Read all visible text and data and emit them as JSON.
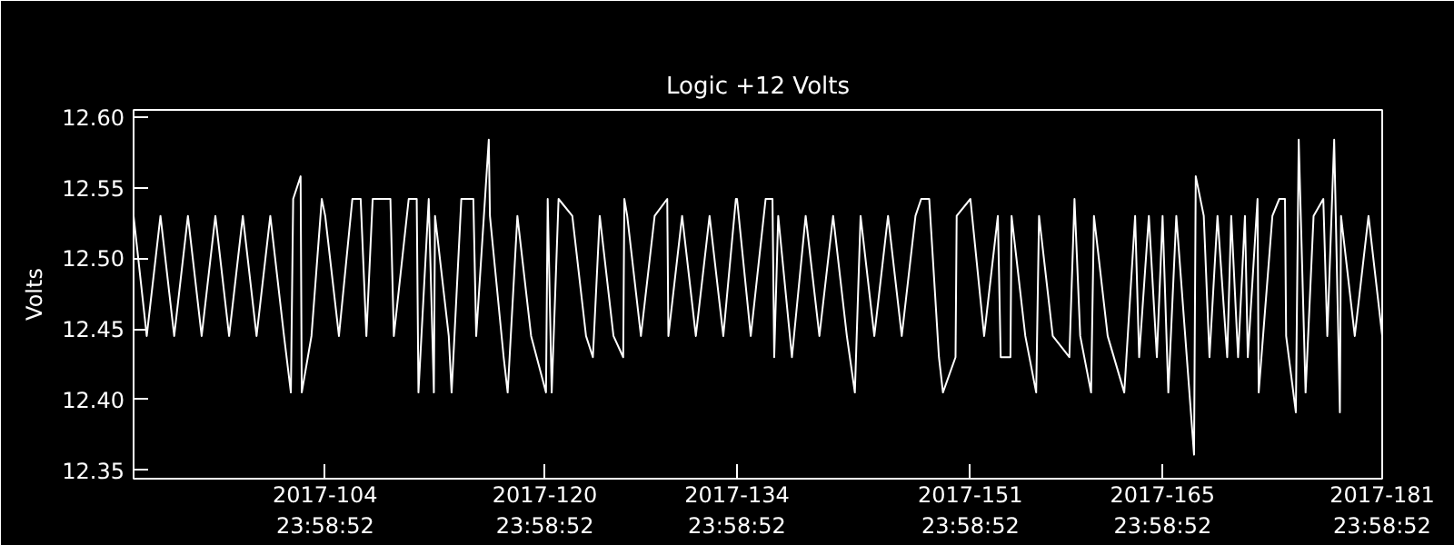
{
  "chart_data": {
    "type": "line",
    "title": "Logic +12 Volts",
    "ylabel": "Volts",
    "xlim": [
      "2017-04-01T01:00",
      "2017-06-30T23:58"
    ],
    "ylim": [
      12.344,
      12.605
    ],
    "xticks": [
      {
        "value": "2017-04-14T23:58",
        "label": "2017-104\n23:58:52"
      },
      {
        "value": "2017-04-30T23:58",
        "label": "2017-120\n23:58:52"
      },
      {
        "value": "2017-05-14T23:58",
        "label": "2017-134\n23:58:52"
      },
      {
        "value": "2017-05-31T23:58",
        "label": "2017-151\n23:58:52"
      },
      {
        "value": "2017-06-14T23:58",
        "label": "2017-165\n23:58:52"
      },
      {
        "value": "2017-06-30T23:58",
        "label": "2017-181\n23:58:52"
      }
    ],
    "yticks": [
      {
        "value": 12.35,
        "label": "12.35"
      },
      {
        "value": 12.4,
        "label": "12.40"
      },
      {
        "value": 12.45,
        "label": "12.45"
      },
      {
        "value": 12.5,
        "label": "12.50"
      },
      {
        "value": 12.55,
        "label": "12.55"
      },
      {
        "value": 12.6,
        "label": "12.60"
      }
    ],
    "series": [
      {
        "color": "#ffffff",
        "x": [
          "2017-04-01T01:00",
          "2017-04-02",
          "2017-04-03",
          "2017-04-04",
          "2017-04-05",
          "2017-04-06",
          "2017-04-07",
          "2017-04-08",
          "2017-04-09",
          "2017-04-10",
          "2017-04-11",
          "2017-04-12",
          "2017-04-12T12:00",
          "2017-04-12T16:00",
          "2017-04-13T05:00",
          "2017-04-13T07:00",
          "2017-04-14",
          "2017-04-14T18:00",
          "2017-04-15",
          "2017-04-16",
          "2017-04-16T23:30",
          "2017-04-17T14:00",
          "2017-04-18",
          "2017-04-18T11:00",
          "2017-04-19",
          "2017-04-19T18:00",
          "2017-04-20",
          "2017-04-21T02:00",
          "2017-04-21T16:00",
          "2017-04-21T19:00",
          "2017-04-22T13:00",
          "2017-04-22T22:00",
          "2017-04-23",
          "2017-04-24",
          "2017-04-24T05:00",
          "2017-04-24T22:00",
          "2017-04-25T19:00",
          "2017-04-26",
          "2017-04-26T22:00",
          "2017-04-27",
          "2017-04-28",
          "2017-04-28T07:00",
          "2017-04-29",
          "2017-04-30",
          "2017-05-01T02:00",
          "2017-05-01T05:00",
          "2017-05-01T12:00",
          "2017-05-02",
          "2017-05-03",
          "2017-05-04",
          "2017-05-04T12:00",
          "2017-05-05",
          "2017-05-06",
          "2017-05-06T17:00",
          "2017-05-06T19:00",
          "2017-05-07",
          "2017-05-08",
          "2017-05-09",
          "2017-05-09T22:00",
          "2017-05-10",
          "2017-05-11",
          "2017-05-12",
          "2017-05-13",
          "2017-05-14",
          "2017-05-14T22:00",
          "2017-05-15",
          "2017-05-16",
          "2017-05-17T02:00",
          "2017-05-17T14:00",
          "2017-05-17T17:00",
          "2017-05-18",
          "2017-05-19",
          "2017-05-20",
          "2017-05-21",
          "2017-05-22",
          "2017-05-23",
          "2017-05-23T14:00",
          "2017-05-24",
          "2017-05-25",
          "2017-05-26",
          "2017-05-27",
          "2017-05-28",
          "2017-05-28T10:00",
          "2017-05-29",
          "2017-05-29T17:00",
          "2017-05-30",
          "2017-05-30T22:00",
          "2017-05-31",
          "2017-06-01",
          "2017-06-02",
          "2017-06-03",
          "2017-06-03T05:00",
          "2017-06-03T22:00",
          "2017-06-04",
          "2017-06-05",
          "2017-06-05T19:00",
          "2017-06-06",
          "2017-06-07",
          "2017-06-08T05:00",
          "2017-06-08T14:00",
          "2017-06-09",
          "2017-06-09T19:00",
          "2017-06-10",
          "2017-06-11",
          "2017-06-12T05:00",
          "2017-06-13",
          "2017-06-13T07:00",
          "2017-06-14",
          "2017-06-14T14:00",
          "2017-06-15",
          "2017-06-15T10:00",
          "2017-06-16",
          "2017-06-17T07:00",
          "2017-06-17T10:00",
          "2017-06-18",
          "2017-06-18T10:00",
          "2017-06-19",
          "2017-06-19T17:00",
          "2017-06-20",
          "2017-06-20T12:00",
          "2017-06-21",
          "2017-06-21T05:00",
          "2017-06-21T22:00",
          "2017-06-22",
          "2017-06-23",
          "2017-06-23T12:00",
          "2017-06-23T22:00",
          "2017-06-24",
          "2017-06-24T17:00",
          "2017-06-24T22:00",
          "2017-06-25T10:00",
          "2017-06-26",
          "2017-06-26T17:00",
          "2017-06-27",
          "2017-06-27T12:00",
          "2017-06-27T22:00",
          "2017-06-28",
          "2017-06-29",
          "2017-06-30",
          "2017-06-30T23:58"
        ],
        "values": [
          12.53,
          12.445,
          12.53,
          12.445,
          12.53,
          12.445,
          12.53,
          12.445,
          12.53,
          12.445,
          12.53,
          12.445,
          12.405,
          12.542,
          12.558,
          12.405,
          12.445,
          12.542,
          12.53,
          12.445,
          12.542,
          12.542,
          12.445,
          12.542,
          12.542,
          12.542,
          12.445,
          12.542,
          12.542,
          12.405,
          12.542,
          12.405,
          12.53,
          12.445,
          12.405,
          12.542,
          12.542,
          12.445,
          12.584,
          12.53,
          12.43,
          12.405,
          12.53,
          12.445,
          12.405,
          12.542,
          12.405,
          12.542,
          12.53,
          12.445,
          12.43,
          12.53,
          12.445,
          12.43,
          12.542,
          12.53,
          12.445,
          12.53,
          12.542,
          12.445,
          12.53,
          12.445,
          12.53,
          12.445,
          12.542,
          12.542,
          12.445,
          12.542,
          12.542,
          12.43,
          12.53,
          12.43,
          12.53,
          12.445,
          12.53,
          12.445,
          12.405,
          12.53,
          12.445,
          12.53,
          12.445,
          12.53,
          12.542,
          12.542,
          12.43,
          12.405,
          12.43,
          12.53,
          12.542,
          12.445,
          12.53,
          12.43,
          12.43,
          12.53,
          12.445,
          12.405,
          12.53,
          12.445,
          12.43,
          12.542,
          12.445,
          12.405,
          12.53,
          12.445,
          12.405,
          12.53,
          12.43,
          12.53,
          12.43,
          12.53,
          12.405,
          12.53,
          12.361,
          12.558,
          12.53,
          12.43,
          12.53,
          12.43,
          12.53,
          12.43,
          12.53,
          12.43,
          12.542,
          12.405,
          12.53,
          12.542,
          12.542,
          12.445,
          12.391,
          12.584,
          12.405,
          12.53,
          12.542,
          12.445,
          12.584,
          12.391,
          12.53,
          12.445,
          12.53,
          12.445
        ]
      }
    ]
  }
}
